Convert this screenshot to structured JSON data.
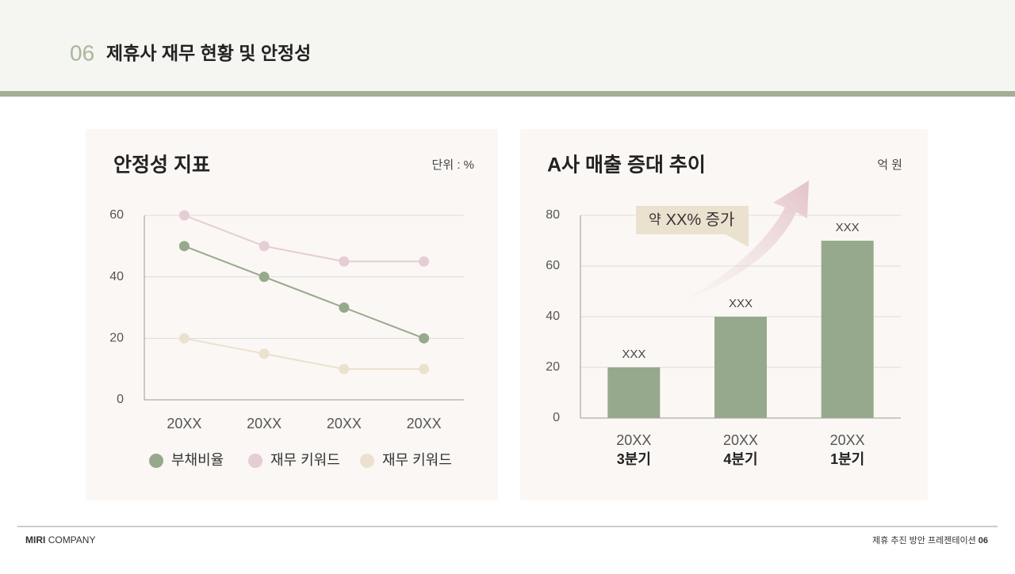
{
  "header": {
    "number": "06",
    "title": "제휴사 재무 현황 및 안정성"
  },
  "chart_data": [
    {
      "type": "line",
      "title": "안정성 지표",
      "unit": "단위 : %",
      "categories": [
        "20XX",
        "20XX",
        "20XX",
        "20XX"
      ],
      "series": [
        {
          "name": "부채비율",
          "color": "#97a98c",
          "values": [
            50,
            40,
            30,
            20
          ]
        },
        {
          "name": "재무 키워드",
          "color": "#e4cdd4",
          "values": [
            60,
            50,
            45,
            45
          ]
        },
        {
          "name": "재무 키워드",
          "color": "#ebe1cf",
          "values": [
            20,
            15,
            10,
            10
          ]
        }
      ],
      "ylim": [
        0,
        60
      ],
      "yticks": [
        0,
        20,
        40,
        60
      ],
      "grid": true,
      "legend": "bottom"
    },
    {
      "type": "bar",
      "title": "A사 매출 증대 추이",
      "unit": "억 원",
      "categories": [
        "20XX",
        "20XX",
        "20XX"
      ],
      "category_sublabels": [
        "3분기",
        "4분기",
        "1분기"
      ],
      "values": [
        20,
        40,
        70
      ],
      "value_labels": [
        "XXX",
        "XXX",
        "XXX"
      ],
      "color": "#97a98c",
      "ylim": [
        0,
        80
      ],
      "yticks": [
        0,
        20,
        40,
        60,
        80
      ],
      "grid": true,
      "annotation": {
        "prefix": "약",
        "emphasis": "XX% 증가"
      }
    }
  ],
  "footer": {
    "brand_bold": "MIRI",
    "brand": "COMPANY",
    "text": "제휴 추진 방안 프레젠테이션",
    "page": "06"
  }
}
